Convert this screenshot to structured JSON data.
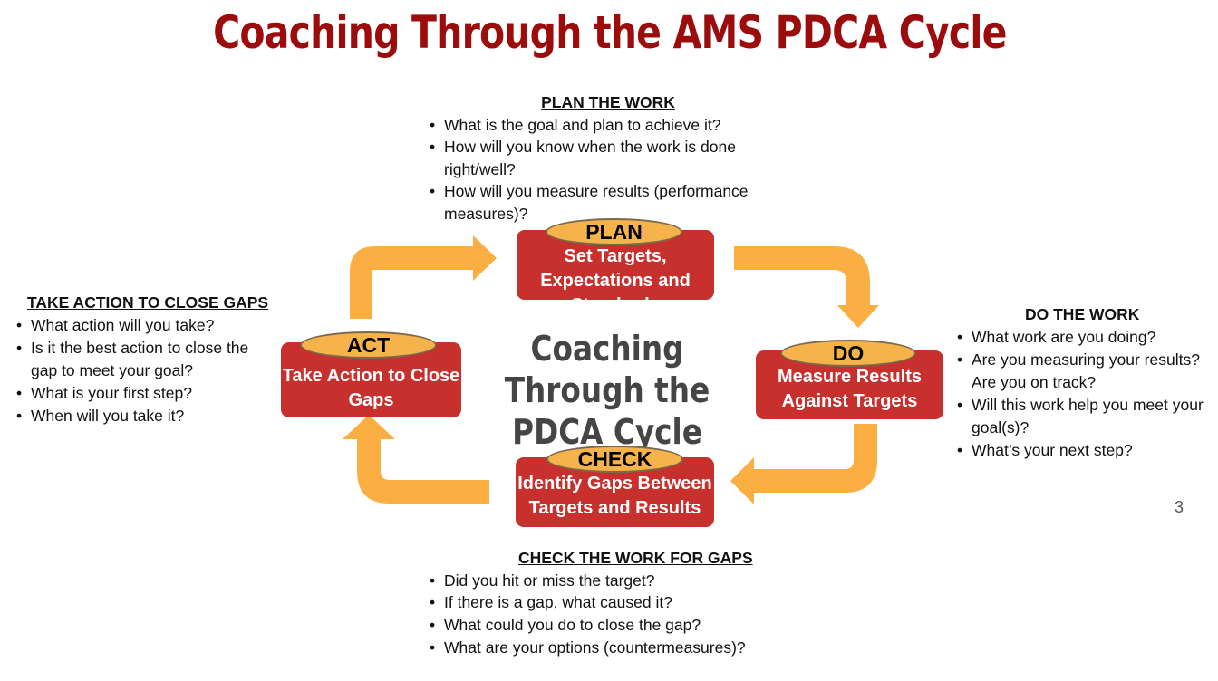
{
  "title": "Coaching Through the AMS PDCA Cycle",
  "center_title": "Coaching Through the PDCA Cycle",
  "stages": {
    "plan": {
      "label": "PLAN",
      "text": "Set Targets, Expectations and Standards"
    },
    "do": {
      "label": "DO",
      "text": "Measure Results Against Targets"
    },
    "check": {
      "label": "CHECK",
      "text": "Identify Gaps Between Targets and Results"
    },
    "act": {
      "label": "ACT",
      "text": "Take Action to Close Gaps"
    }
  },
  "panels": {
    "plan": {
      "heading": "PLAN THE WORK",
      "items": [
        "What is the goal and plan to achieve it?",
        "How will you know when the work is done right/well?",
        "How will you measure results (performance measures)?"
      ]
    },
    "do": {
      "heading": "DO THE WORK",
      "items": [
        "What work are you doing?",
        "Are you measuring your results?  Are you on track?",
        "Will this work help you meet your goal(s)?",
        "What’s your next step?"
      ]
    },
    "check": {
      "heading": "CHECK THE WORK FOR GAPS",
      "items": [
        "Did you hit or miss the target?",
        "If there is a gap, what caused it?",
        "What could you do to close the gap?",
        "What are your options (countermeasures)?"
      ]
    },
    "act": {
      "heading": "TAKE ACTION TO CLOSE GAPS",
      "items": [
        "What action will you take?",
        "Is it the best action to close the gap to meet your goal?",
        "What is your first step?",
        "When will you take it?"
      ]
    }
  },
  "page_number": "3",
  "colors": {
    "title": "#9c0c0c",
    "box": "#c8302e",
    "pill": "#f6b34c",
    "arrow": "#fbae42",
    "center_text": "#454545"
  }
}
